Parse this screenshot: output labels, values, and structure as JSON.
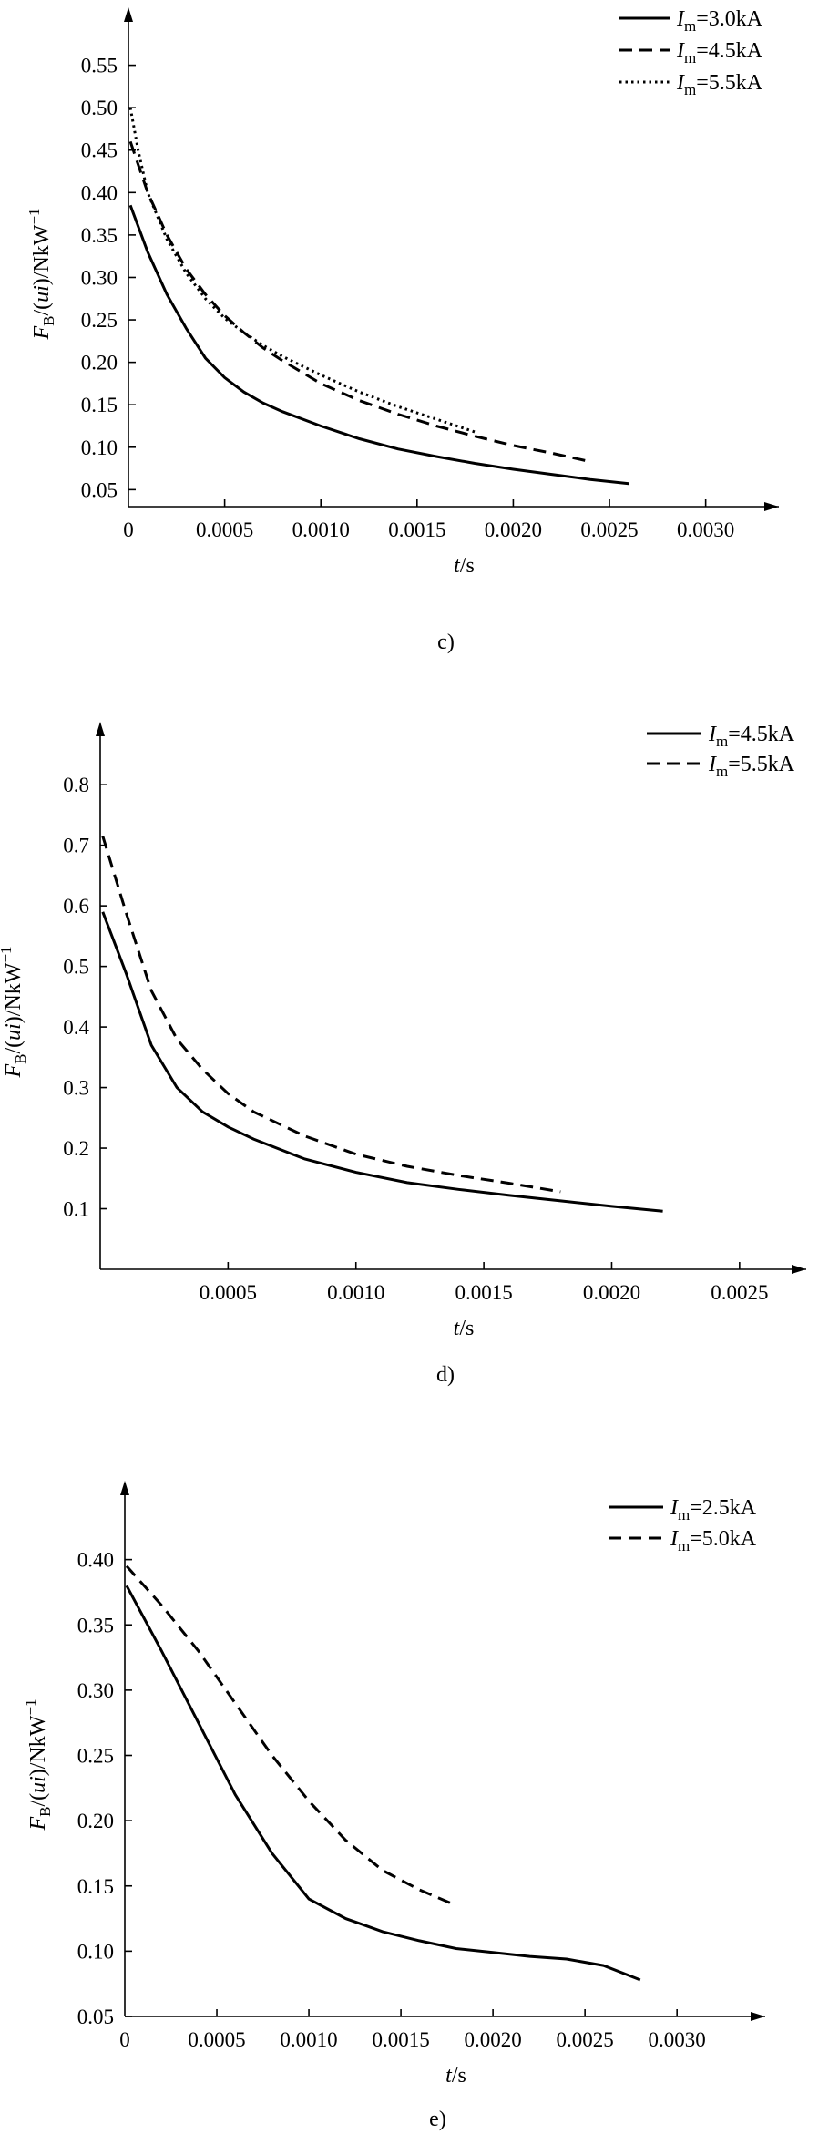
{
  "chart_data": [
    {
      "type": "line",
      "panel": "c)",
      "xlabel": {
        "italic": "t",
        "rest": "/s"
      },
      "ylabel": {
        "main": "F",
        "sub": "B",
        "paren": "/(",
        "italic": "ui",
        "after": ")/NkW",
        "sup": "−1"
      },
      "xlim": [
        0,
        0.0033
      ],
      "ylim": [
        0.03,
        0.6
      ],
      "xticks": [
        "0",
        "0.0005",
        "0.0010",
        "0.0015",
        "0.0020",
        "0.0025",
        "0.0030"
      ],
      "yticks": [
        "0.05",
        "0.10",
        "0.15",
        "0.20",
        "0.25",
        "0.30",
        "0.35",
        "0.40",
        "0.45",
        "0.50",
        "0.55"
      ],
      "legend_position": "top-right",
      "series": [
        {
          "name": "Im=3.0kA",
          "legend": {
            "main": "I",
            "sub": "m",
            "value": "=3.0kA"
          },
          "style": "solid",
          "x": [
            1e-05,
            0.0001,
            0.0002,
            0.0003,
            0.0004,
            0.0005,
            0.0006,
            0.0007,
            0.0008,
            0.001,
            0.0012,
            0.0014,
            0.0016,
            0.0018,
            0.002,
            0.0022,
            0.0024,
            0.0026
          ],
          "y": [
            0.385,
            0.33,
            0.28,
            0.24,
            0.205,
            0.182,
            0.165,
            0.152,
            0.142,
            0.125,
            0.11,
            0.098,
            0.089,
            0.081,
            0.074,
            0.068,
            0.062,
            0.057
          ]
        },
        {
          "name": "Im=4.5kA",
          "legend": {
            "main": "I",
            "sub": "m",
            "value": "=4.5kA"
          },
          "style": "dashed",
          "x": [
            1e-05,
            0.0001,
            0.0002,
            0.0003,
            0.0004,
            0.0005,
            0.0006,
            0.0007,
            0.0008,
            0.001,
            0.0012,
            0.0014,
            0.0016,
            0.0018,
            0.002,
            0.0022,
            0.0024
          ],
          "y": [
            0.46,
            0.4,
            0.35,
            0.31,
            0.28,
            0.255,
            0.235,
            0.217,
            0.202,
            0.175,
            0.155,
            0.139,
            0.125,
            0.113,
            0.102,
            0.093,
            0.083
          ]
        },
        {
          "name": "Im=5.5kA",
          "legend": {
            "main": "I",
            "sub": "m",
            "value": "=5.5kA"
          },
          "style": "dotted",
          "x": [
            1e-05,
            5e-05,
            0.0001,
            0.0002,
            0.0003,
            0.0004,
            0.0005,
            0.0006,
            0.0007,
            0.0008,
            0.001,
            0.0012,
            0.0014,
            0.0016,
            0.0018
          ],
          "y": [
            0.5,
            0.45,
            0.4,
            0.345,
            0.305,
            0.275,
            0.252,
            0.235,
            0.22,
            0.207,
            0.185,
            0.165,
            0.148,
            0.133,
            0.118
          ]
        }
      ]
    },
    {
      "type": "line",
      "panel": "d)",
      "xlabel": {
        "italic": "t",
        "rest": "/s"
      },
      "ylabel": {
        "main": "F",
        "sub": "B",
        "paren": "/(",
        "italic": "ui",
        "after": ")/NkW",
        "sup": "−1"
      },
      "xlim": [
        0,
        0.0027
      ],
      "ylim": [
        0.0,
        0.88
      ],
      "xticks": [
        "0.0005",
        "0.0010",
        "0.0015",
        "0.0020",
        "0.0025"
      ],
      "yticks": [
        "0.1",
        "0.2",
        "0.3",
        "0.4",
        "0.5",
        "0.6",
        "0.7",
        "0.8"
      ],
      "legend_position": "top-right",
      "series": [
        {
          "name": "Im=4.5kA",
          "legend": {
            "main": "I",
            "sub": "m",
            "value": "=4.5kA"
          },
          "style": "solid",
          "x": [
            1e-05,
            0.0001,
            0.0002,
            0.0003,
            0.0004,
            0.0005,
            0.0006,
            0.0008,
            0.001,
            0.0012,
            0.0014,
            0.0016,
            0.0018,
            0.002,
            0.0022
          ],
          "y": [
            0.59,
            0.49,
            0.37,
            0.3,
            0.26,
            0.235,
            0.215,
            0.182,
            0.16,
            0.143,
            0.132,
            0.122,
            0.113,
            0.104,
            0.096
          ]
        },
        {
          "name": "Im=5.5kA",
          "legend": {
            "main": "I",
            "sub": "m",
            "value": "=5.5kA"
          },
          "style": "dashed",
          "x": [
            1e-05,
            0.0001,
            0.0002,
            0.0003,
            0.0004,
            0.0005,
            0.0006,
            0.0008,
            0.001,
            0.0012,
            0.0014,
            0.0016,
            0.0018
          ],
          "y": [
            0.715,
            0.59,
            0.46,
            0.38,
            0.33,
            0.29,
            0.26,
            0.22,
            0.19,
            0.17,
            0.155,
            0.142,
            0.128
          ]
        }
      ]
    },
    {
      "type": "line",
      "panel": "e)",
      "xlabel": {
        "italic": "t",
        "rest": "/s"
      },
      "ylabel": {
        "main": "F",
        "sub": "B",
        "paren": "/(",
        "italic": "ui",
        "after": ")/NkW",
        "sup": "−1"
      },
      "xlim": [
        0,
        0.0034
      ],
      "ylim": [
        0.05,
        0.45
      ],
      "xticks": [
        "0",
        "0.0005",
        "0.0010",
        "0.0015",
        "0.0020",
        "0.0025",
        "0.0030"
      ],
      "yticks": [
        "0.05",
        "0.10",
        "0.15",
        "0.20",
        "0.25",
        "0.30",
        "0.35",
        "0.40"
      ],
      "legend_position": "top-right",
      "series": [
        {
          "name": "Im=2.5kA",
          "legend": {
            "main": "I",
            "sub": "m",
            "value": "=2.5kA"
          },
          "style": "solid",
          "x": [
            1e-05,
            0.0002,
            0.0004,
            0.0006,
            0.0008,
            0.001,
            0.0012,
            0.0013,
            0.0014,
            0.0016,
            0.0018,
            0.002,
            0.0022,
            0.0024,
            0.0026,
            0.0028
          ],
          "y": [
            0.38,
            0.33,
            0.275,
            0.22,
            0.175,
            0.14,
            0.125,
            0.12,
            0.115,
            0.108,
            0.102,
            0.099,
            0.096,
            0.094,
            0.089,
            0.078
          ]
        },
        {
          "name": "Im=5.0kA",
          "legend": {
            "main": "I",
            "sub": "m",
            "value": "=5.0kA"
          },
          "style": "dashed",
          "x": [
            1e-05,
            0.0002,
            0.0004,
            0.0006,
            0.0008,
            0.001,
            0.0012,
            0.0014,
            0.0016,
            0.0018
          ],
          "y": [
            0.395,
            0.365,
            0.33,
            0.29,
            0.25,
            0.215,
            0.185,
            0.162,
            0.147,
            0.135
          ]
        }
      ]
    }
  ]
}
